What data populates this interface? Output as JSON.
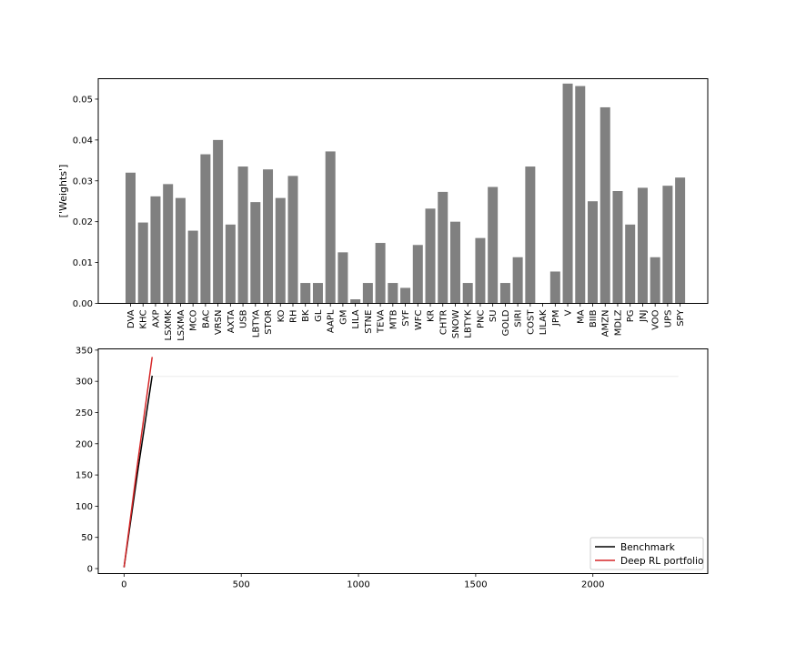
{
  "chart_data": [
    {
      "type": "bar",
      "title": "",
      "xlabel": "",
      "ylabel": "['Weights']",
      "ylim": [
        0,
        0.055
      ],
      "yticks": [
        0.0,
        0.01,
        0.02,
        0.03,
        0.04,
        0.05
      ],
      "ytick_labels": [
        "0.00",
        "0.01",
        "0.02",
        "0.03",
        "0.04",
        "0.05"
      ],
      "bar_color": "#808080",
      "grid": false,
      "categories": [
        "DVA",
        "KHC",
        "AXP",
        "LSXMK",
        "LSXMA",
        "MCO",
        "BAC",
        "VRSN",
        "AXTA",
        "USB",
        "LBTYA",
        "STOR",
        "KO",
        "RH",
        "BK",
        "GL",
        "AAPL",
        "GM",
        "LILA",
        "STNE",
        "TEVA",
        "MTB",
        "SYF",
        "WFC",
        "KR",
        "CHTR",
        "SNOW",
        "LBTYK",
        "PNC",
        "SU",
        "GOLD",
        "SIRI",
        "COST",
        "LILAK",
        "JPM",
        "V",
        "MA",
        "BIIB",
        "AMZN",
        "MDLZ",
        "PG",
        "JNJ",
        "VOO",
        "UPS",
        "SPY"
      ],
      "values": [
        0.032,
        0.0198,
        0.0262,
        0.0292,
        0.0258,
        0.0178,
        0.0365,
        0.04,
        0.0193,
        0.0335,
        0.0248,
        0.0328,
        0.0258,
        0.0312,
        0.005,
        0.005,
        0.0372,
        0.0125,
        0.001,
        0.005,
        0.0148,
        0.005,
        0.0038,
        0.0143,
        0.0232,
        0.0273,
        0.02,
        0.005,
        0.016,
        0.0285,
        0.005,
        0.0113,
        0.0335,
        0.0,
        0.0078,
        0.0538,
        0.0532,
        0.025,
        0.048,
        0.0275,
        0.0193,
        0.0283,
        0.0113,
        0.0288,
        0.0308
      ]
    },
    {
      "type": "line",
      "title": "",
      "xlabel": "",
      "ylabel": "",
      "xlim": [
        -110,
        2490
      ],
      "ylim": [
        -8,
        352
      ],
      "xticks": [
        0,
        500,
        1000,
        1500,
        2000
      ],
      "xtick_labels": [
        "0",
        "500",
        "1000",
        "1500",
        "2000"
      ],
      "yticks": [
        0,
        50,
        100,
        150,
        200,
        250,
        300,
        350
      ],
      "ytick_labels": [
        "0",
        "50",
        "100",
        "150",
        "200",
        "250",
        "300",
        "350"
      ],
      "grid": false,
      "legend_position": "lower-right",
      "series": [
        {
          "name": "Benchmark",
          "color": "#000000",
          "x": [
            0,
            60,
            120
          ],
          "y": [
            2,
            160,
            309
          ]
        },
        {
          "name": "Deep RL portfolio",
          "color": "#d62728",
          "x": [
            0,
            60,
            120
          ],
          "y": [
            2,
            175,
            339
          ]
        },
        {
          "name": "",
          "color": "#ececec",
          "x": [
            120,
            2365
          ],
          "y": [
            308,
            308
          ]
        }
      ]
    }
  ]
}
